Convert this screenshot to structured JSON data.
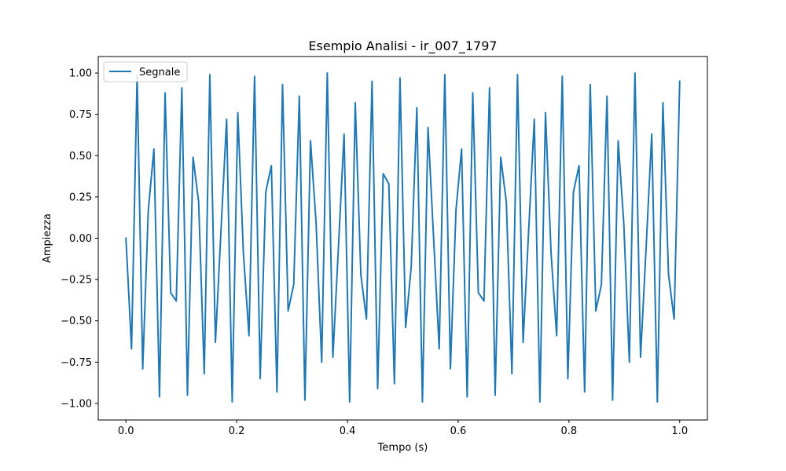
{
  "chart_data": {
    "type": "line",
    "title": "Esempio Analisi - ir_007_1797",
    "xlabel": "Tempo (s)",
    "ylabel": "Ampiezza",
    "xlim": [
      -0.05,
      1.05
    ],
    "ylim": [
      -1.1,
      1.1
    ],
    "xticks": [
      0.0,
      0.2,
      0.4,
      0.6,
      0.8,
      1.0
    ],
    "xtick_labels": [
      "0.0",
      "0.2",
      "0.4",
      "0.6",
      "0.8",
      "1.0"
    ],
    "yticks": [
      -1.0,
      -0.75,
      -0.5,
      -0.25,
      0.0,
      0.25,
      0.5,
      0.75,
      1.0
    ],
    "ytick_labels": [
      "−1.00",
      "−0.75",
      "−0.50",
      "−0.25",
      "0.00",
      "0.25",
      "0.50",
      "0.75",
      "1.00"
    ],
    "grid": false,
    "legend_position": "upper-left",
    "series": [
      {
        "name": "Segnale",
        "color": "#1f77b4",
        "x": [
          0.0,
          0.0101,
          0.0202,
          0.0303,
          0.0404,
          0.0505,
          0.0606,
          0.0707,
          0.0808,
          0.0909,
          0.101,
          0.1111,
          0.1212,
          0.1313,
          0.1414,
          0.1515,
          0.1616,
          0.1717,
          0.1818,
          0.1919,
          0.202,
          0.2121,
          0.2222,
          0.2323,
          0.2424,
          0.2525,
          0.2626,
          0.2727,
          0.2828,
          0.2929,
          0.303,
          0.3131,
          0.3232,
          0.3333,
          0.3434,
          0.3535,
          0.3636,
          0.3737,
          0.3838,
          0.3939,
          0.404,
          0.4141,
          0.4242,
          0.4343,
          0.4444,
          0.4545,
          0.4646,
          0.4747,
          0.4848,
          0.4949,
          0.5051,
          0.5152,
          0.5253,
          0.5354,
          0.5455,
          0.5556,
          0.5657,
          0.5758,
          0.5859,
          0.596,
          0.6061,
          0.6162,
          0.6263,
          0.6364,
          0.6465,
          0.6566,
          0.6667,
          0.6768,
          0.6869,
          0.697,
          0.7071,
          0.7172,
          0.7273,
          0.7374,
          0.7475,
          0.7576,
          0.7677,
          0.7778,
          0.7879,
          0.798,
          0.8081,
          0.8182,
          0.8283,
          0.8384,
          0.8485,
          0.8586,
          0.8687,
          0.8788,
          0.8889,
          0.899,
          0.9091,
          0.9192,
          0.9293,
          0.9394,
          0.9495,
          0.9596,
          0.9697,
          0.9798,
          0.9899,
          1.0
        ],
        "y": [
          0.0,
          -0.67,
          0.99,
          -0.79,
          0.17,
          0.54,
          -0.96,
          0.88,
          -0.33,
          -0.38,
          0.91,
          -0.95,
          0.49,
          0.22,
          -0.82,
          0.99,
          -0.63,
          0.05,
          0.72,
          -0.99,
          0.76,
          -0.09,
          -0.59,
          0.98,
          -0.85,
          0.28,
          0.44,
          -0.93,
          0.93,
          -0.44,
          -0.28,
          0.86,
          -0.98,
          0.59,
          0.09,
          -0.75,
          1.0,
          -0.72,
          -0.05,
          0.63,
          -0.99,
          0.82,
          -0.22,
          -0.49,
          0.95,
          -0.91,
          0.39,
          0.33,
          -0.88,
          0.97,
          -0.54,
          -0.17,
          0.79,
          -0.99,
          0.67,
          0.0,
          -0.67,
          0.99,
          -0.79,
          0.17,
          0.54,
          -0.96,
          0.88,
          -0.33,
          -0.38,
          0.91,
          -0.95,
          0.49,
          0.22,
          -0.82,
          0.99,
          -0.63,
          0.05,
          0.72,
          -0.99,
          0.76,
          -0.09,
          -0.59,
          0.98,
          -0.85,
          0.28,
          0.44,
          -0.93,
          0.93,
          -0.44,
          -0.28,
          0.86,
          -0.98,
          0.59,
          0.09,
          -0.75,
          1.0,
          -0.72,
          -0.05,
          0.63,
          -0.99,
          0.82,
          -0.22,
          -0.49,
          0.95
        ]
      }
    ]
  }
}
